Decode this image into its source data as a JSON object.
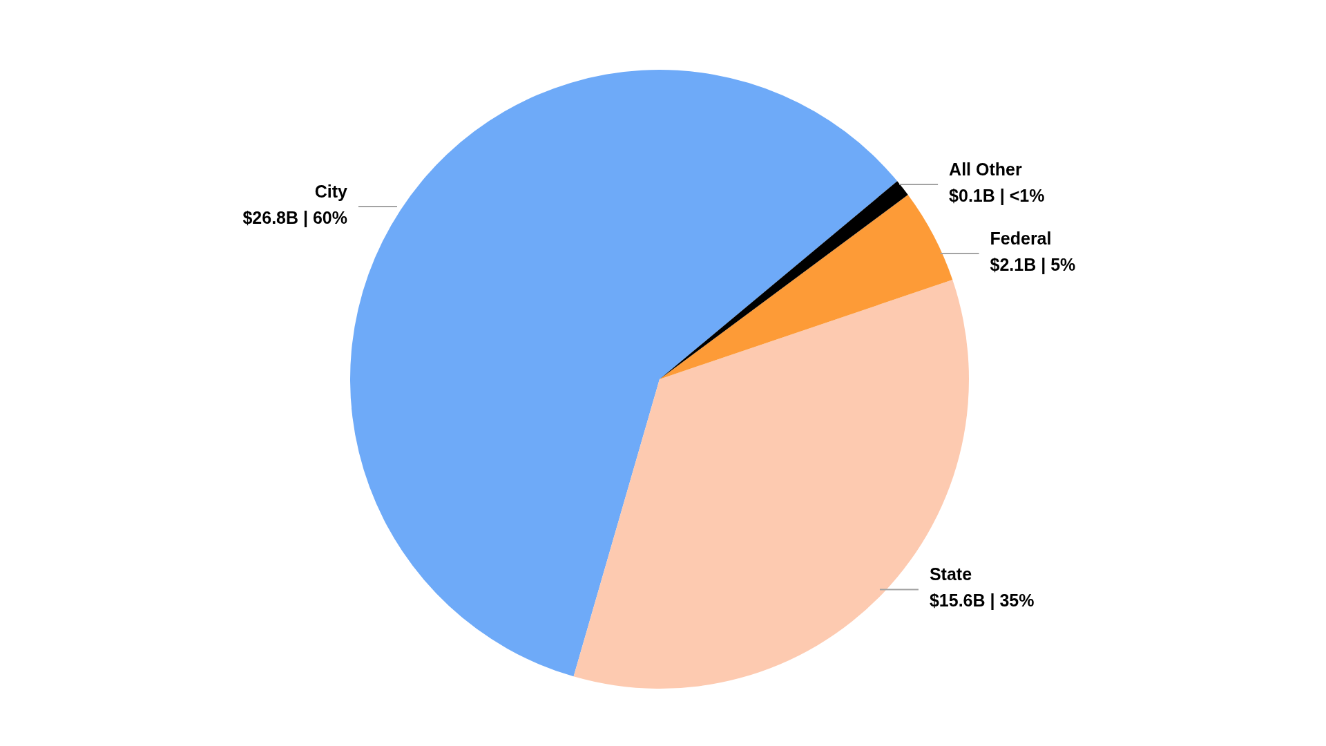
{
  "chart_data": {
    "type": "pie",
    "categories": [
      "City",
      "State",
      "Federal",
      "All Other"
    ],
    "values": [
      60,
      35,
      5,
      0.9
    ],
    "colors": [
      "#6eaaf8",
      "#fdcab0",
      "#fd9b37",
      "#000000"
    ],
    "value_labels": [
      "$26.8B | 60%",
      "$15.6B | 35%",
      "$2.1B | 5%",
      "$0.1B | <1%"
    ]
  }
}
